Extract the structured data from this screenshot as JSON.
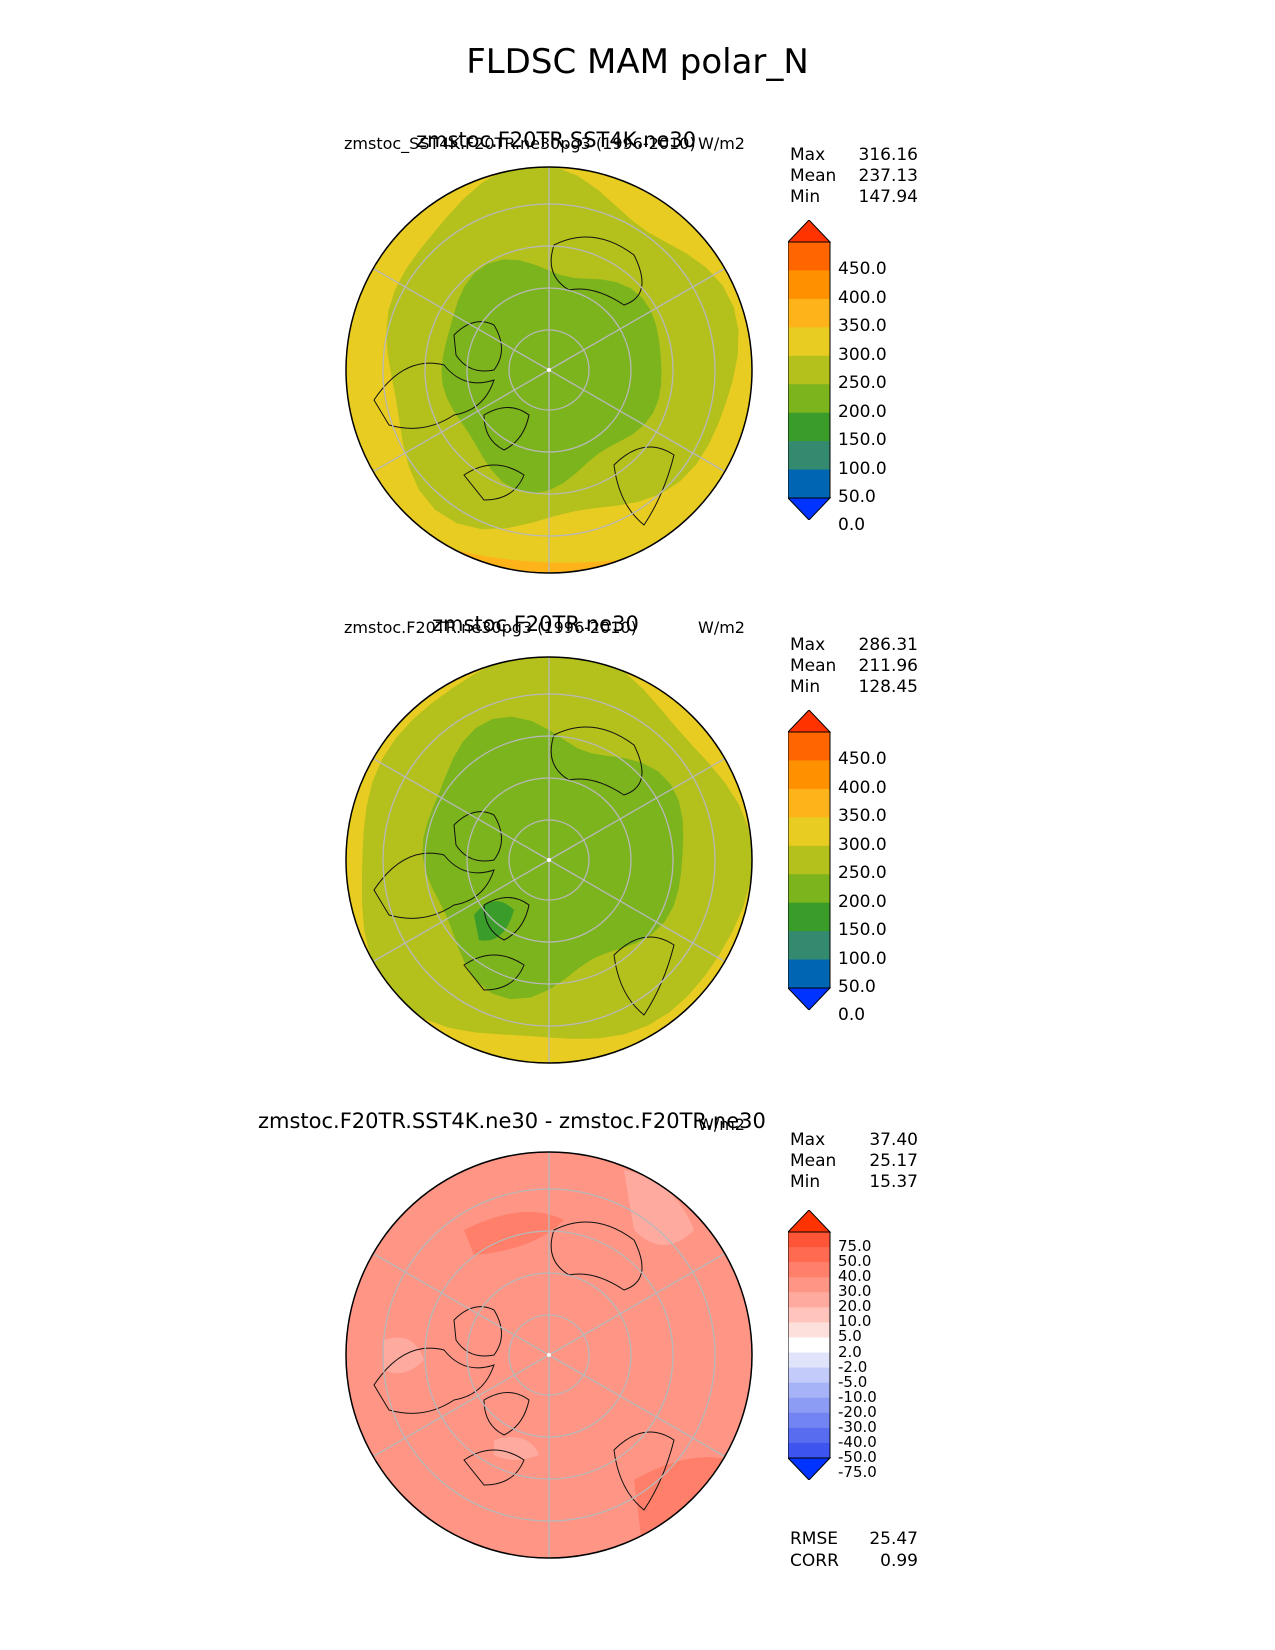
{
  "figure_title": "FLDSC MAM polar_N",
  "panels": [
    {
      "title": "zmstoc.F20TR.SST4K.ne30",
      "subtitle": "zmstoc_SST4K.F20TR.ne30pg3 (1996-2010)",
      "units": "W/m2",
      "stats": {
        "max_label": "Max",
        "max": "316.16",
        "mean_label": "Mean",
        "mean": "237.13",
        "min_label": "Min",
        "min": "147.94"
      },
      "colorbar": {
        "labels": [
          "450.0",
          "400.0",
          "350.0",
          "300.0",
          "250.0",
          "200.0",
          "150.0",
          "100.0",
          "50.0",
          "0.0"
        ],
        "colors": [
          "#ff3300",
          "#ff6600",
          "#ff9000",
          "#ffb31a",
          "#e8cc22",
          "#b4c11c",
          "#7bb41c",
          "#3a9d2a",
          "#338a6e",
          "#0066b3",
          "#0033ff"
        ]
      },
      "field": {
        "background": "#e8cc22",
        "ring_mid": "#b4c11c",
        "core": "#7bb41c",
        "accent": "#ffb31a"
      }
    },
    {
      "title": "zmstoc.F20TR.ne30",
      "subtitle": "zmstoc.F20TR.ne30pg3 (1996-2010)",
      "units": "W/m2",
      "stats": {
        "max_label": "Max",
        "max": "286.31",
        "mean_label": "Mean",
        "mean": "211.96",
        "min_label": "Min",
        "min": "128.45"
      },
      "colorbar": {
        "labels": [
          "450.0",
          "400.0",
          "350.0",
          "300.0",
          "250.0",
          "200.0",
          "150.0",
          "100.0",
          "50.0",
          "0.0"
        ],
        "colors": [
          "#ff3300",
          "#ff6600",
          "#ff9000",
          "#ffb31a",
          "#e8cc22",
          "#b4c11c",
          "#7bb41c",
          "#3a9d2a",
          "#338a6e",
          "#0066b3",
          "#0033ff"
        ]
      },
      "field": {
        "background": "#e8cc22",
        "ring_mid": "#b4c11c",
        "core": "#7bb41c",
        "accent": "#3a9d2a"
      }
    },
    {
      "title": "zmstoc.F20TR.SST4K.ne30 - zmstoc.F20TR.ne30",
      "subtitle": "",
      "units": "W/m2",
      "stats": {
        "max_label": "Max",
        "max": "37.40",
        "mean_label": "Mean",
        "mean": "25.17",
        "min_label": "Min",
        "min": "15.37"
      },
      "colorbar": {
        "labels": [
          "75.0",
          "50.0",
          "40.0",
          "30.0",
          "20.0",
          "10.0",
          "5.0",
          "2.0",
          "-2.0",
          "-5.0",
          "-10.0",
          "-20.0",
          "-30.0",
          "-40.0",
          "-50.0",
          "-75.0"
        ],
        "colors": [
          "#ff3300",
          "#ff5536",
          "#ff6a50",
          "#ff7f6a",
          "#ff9585",
          "#ffaa9f",
          "#ffc4bc",
          "#fde0dc",
          "#ffffff",
          "#dfe4fb",
          "#c2cbf9",
          "#a6b3f6",
          "#8c9cf4",
          "#7283f2",
          "#586cf0",
          "#3d55ee",
          "#0033ff"
        ]
      },
      "field": {
        "background": "#ff9585",
        "ring_mid": "#ff9585",
        "core": "#ff9585",
        "accent": "#ff7f6a",
        "light": "#ffaa9f"
      }
    }
  ],
  "metrics": {
    "rmse_label": "RMSE",
    "rmse": "25.47",
    "corr_label": "CORR",
    "corr": "0.99"
  }
}
